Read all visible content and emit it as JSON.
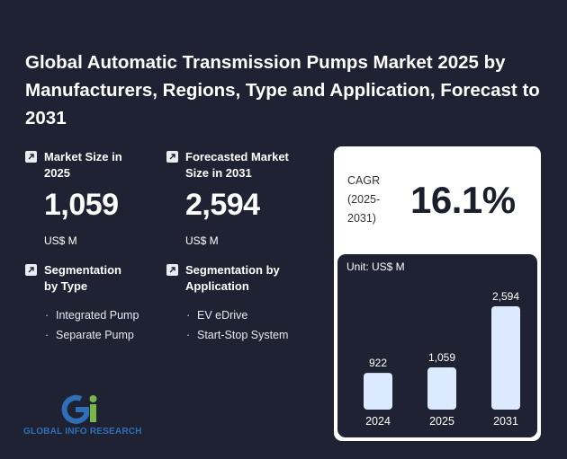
{
  "title": "Global Automatic Transmission Pumps Market 2025 by Manufacturers, Regions, Type and Application, Forecast to 2031",
  "market_size": {
    "label": "Market Size in 2025",
    "value": "1,059",
    "unit": "US$ M"
  },
  "forecast_size": {
    "label": "Forecasted Market Size in 2031",
    "value": "2,594",
    "unit": "US$ M"
  },
  "segmentation_type": {
    "label": "Segmentation by Type",
    "items": [
      "Integrated Pump",
      "Separate Pump"
    ]
  },
  "segmentation_application": {
    "label": "Segmentation by Application",
    "items": [
      "EV eDrive",
      "Start-Stop System"
    ]
  },
  "cagr": {
    "label": "CAGR (2025-2031)",
    "value": "16.1%"
  },
  "logo": {
    "text": "GLOBAL INFO RESEARCH"
  },
  "colors": {
    "background": "#1f2232",
    "bar": "#dbeafe",
    "panel": "#ffffff"
  },
  "chart_data": {
    "type": "bar",
    "unit_label": "Unit: US$ M",
    "categories": [
      "2024",
      "2025",
      "2031"
    ],
    "values": [
      922,
      1059,
      2594
    ],
    "value_labels": [
      "922",
      "1,059",
      "2,594"
    ],
    "title": "",
    "xlabel": "",
    "ylabel": ""
  }
}
